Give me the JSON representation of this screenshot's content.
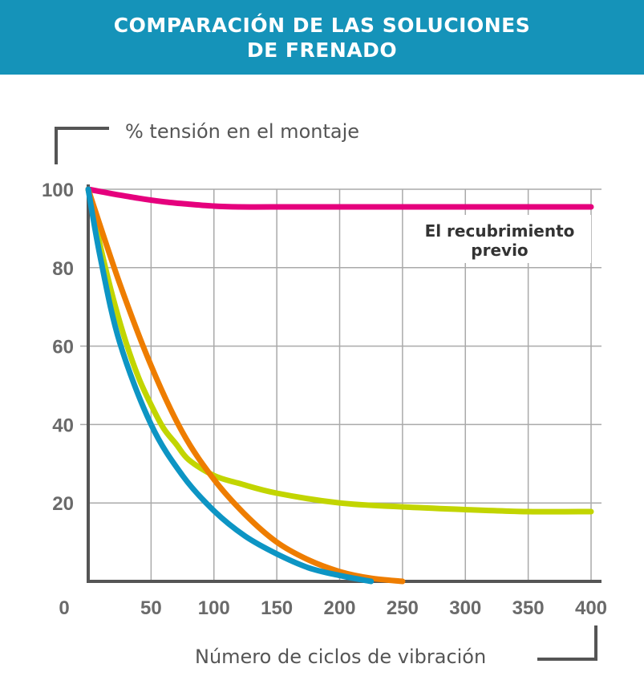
{
  "header": {
    "title_line1": "COMPARACIÓN DE LAS SOLUCIONES",
    "title_line2": "DE FRENADO"
  },
  "colors": {
    "header_bg": "#1593b9",
    "grid": "#aaaaaa",
    "axis": "#555555"
  },
  "chart_data": {
    "type": "line",
    "title": "COMPARACIÓN DE LAS SOLUCIONES DE FRENADO",
    "ylabel": "% tensión en el montaje",
    "xlabel": "Número de ciclos de vibración",
    "xlim": [
      0,
      400
    ],
    "ylim": [
      0,
      100
    ],
    "x_ticks": [
      0,
      50,
      100,
      150,
      200,
      250,
      300,
      350,
      400
    ],
    "y_ticks": [
      20,
      40,
      60,
      80,
      100
    ],
    "grid": true,
    "annotations": [
      {
        "text_line1": "El recubrimiento",
        "text_line2": "previo",
        "series": "magenta"
      }
    ],
    "series": [
      {
        "color": "#e5007d",
        "x": [
          0,
          20,
          40,
          60,
          80,
          100,
          120,
          160,
          200,
          250,
          300,
          350,
          400
        ],
        "y": [
          100,
          98.8,
          97.7,
          96.8,
          96.2,
          95.7,
          95.5,
          95.5,
          95.5,
          95.5,
          95.5,
          95.5,
          95.5
        ]
      },
      {
        "color": "#c2d500",
        "x": [
          0,
          10,
          20,
          30,
          40,
          50,
          60,
          70,
          80,
          100,
          120,
          150,
          200,
          250,
          300,
          350,
          400
        ],
        "y": [
          100,
          85,
          72,
          61,
          52,
          45,
          39,
          35,
          31,
          27,
          25,
          22.5,
          20,
          19,
          18.3,
          17.8,
          17.8
        ]
      },
      {
        "color": "#ee7d00",
        "x": [
          0,
          25,
          50,
          75,
          100,
          125,
          150,
          175,
          200,
          225,
          250
        ],
        "y": [
          100,
          76,
          55,
          38,
          26,
          17,
          10,
          5.5,
          2.5,
          0.8,
          0
        ]
      },
      {
        "color": "#0d95c4",
        "x": [
          0,
          10,
          25,
          50,
          75,
          100,
          125,
          150,
          175,
          200,
          225
        ],
        "y": [
          100,
          82,
          61,
          40,
          27,
          18,
          11.5,
          7,
          3.5,
          1.5,
          0
        ]
      }
    ]
  }
}
